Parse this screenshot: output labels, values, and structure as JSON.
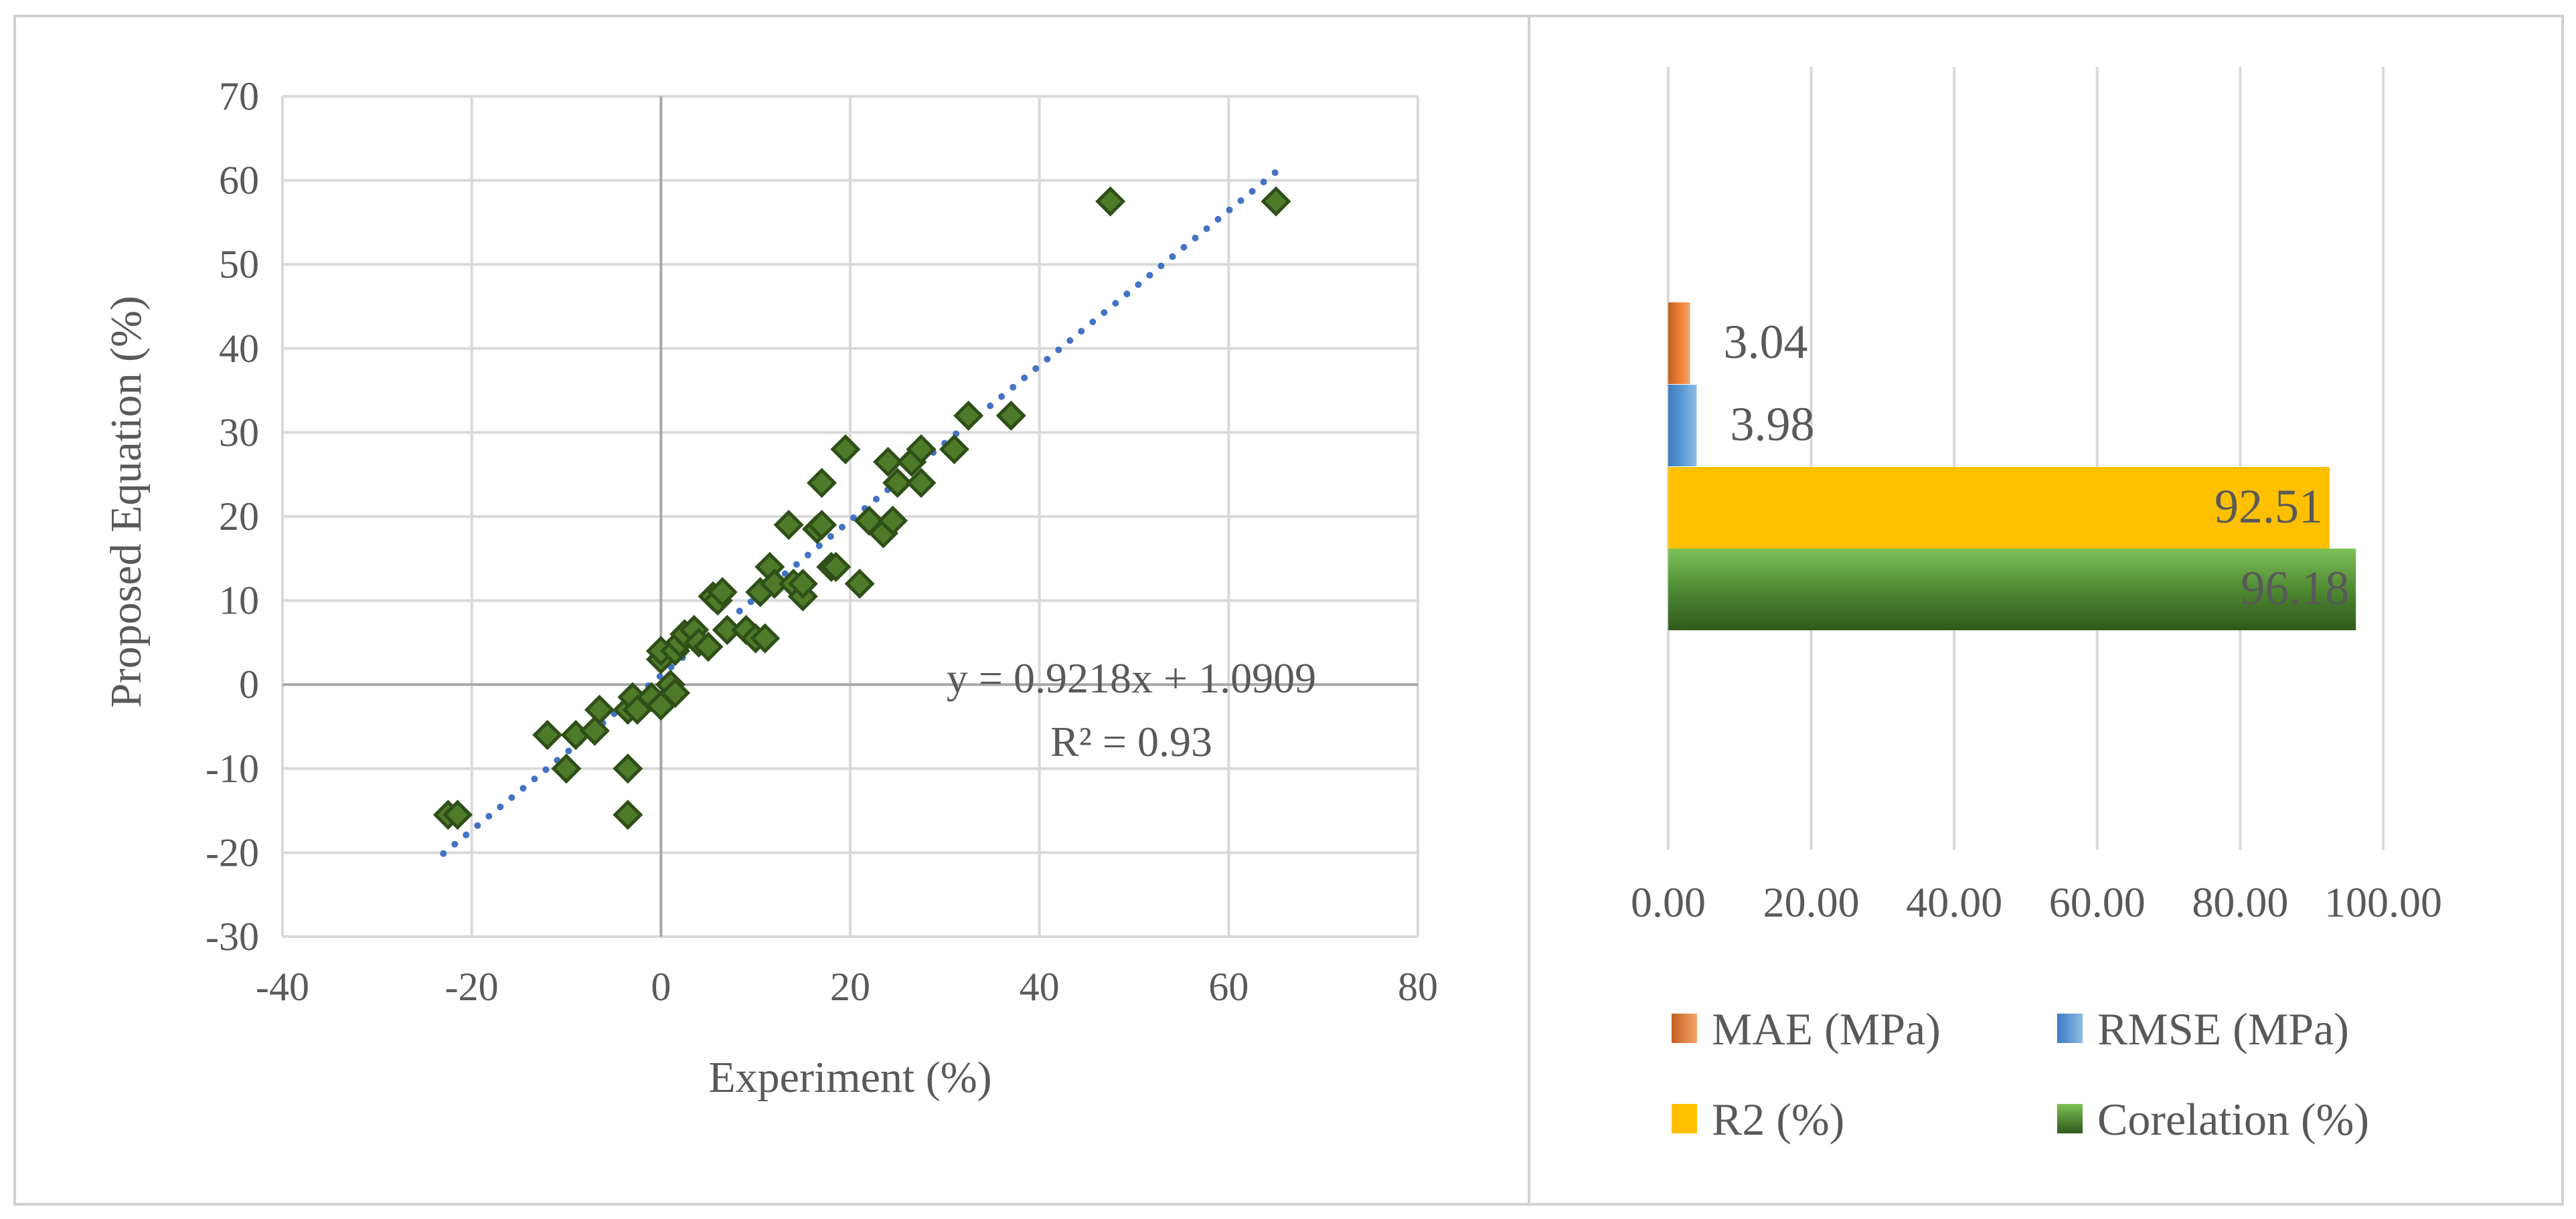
{
  "chart_data": [
    {
      "type": "scatter",
      "xlabel": "Experiment (%)",
      "ylabel": "Proposed Equation (%)",
      "xlim": [
        -40,
        80
      ],
      "ylim": [
        -30,
        70
      ],
      "x_ticks": [
        -40,
        -20,
        0,
        20,
        40,
        60,
        80
      ],
      "y_ticks": [
        -30,
        -20,
        -10,
        0,
        10,
        20,
        30,
        40,
        50,
        60,
        70
      ],
      "grid": true,
      "marker": "diamond",
      "marker_color": "#4E7A2A",
      "trendline": {
        "slope": 0.9218,
        "intercept": 1.0909,
        "x_range": [
          -23,
          65
        ],
        "color": "#4472C4",
        "style": "dotted",
        "equation_label": "y = 0.9218x + 1.0909",
        "r2_label": "R² = 0.93"
      },
      "points": [
        [
          -22.5,
          -15.5
        ],
        [
          -21.5,
          -15.5
        ],
        [
          -12,
          -6
        ],
        [
          -10,
          -10
        ],
        [
          -9,
          -6
        ],
        [
          -7,
          -5.5
        ],
        [
          -6.5,
          -3
        ],
        [
          -3.5,
          -15.5
        ],
        [
          -3.5,
          -10
        ],
        [
          -3.5,
          -3
        ],
        [
          -3,
          -1.5
        ],
        [
          -2.5,
          -3
        ],
        [
          -1,
          -1.5
        ],
        [
          0,
          -2.5
        ],
        [
          0,
          3
        ],
        [
          0,
          4
        ],
        [
          1,
          0
        ],
        [
          1.5,
          -1
        ],
        [
          1.5,
          4
        ],
        [
          2,
          5
        ],
        [
          2.5,
          6
        ],
        [
          3.5,
          6.5
        ],
        [
          4,
          5
        ],
        [
          5,
          4.5
        ],
        [
          5.5,
          10.5
        ],
        [
          6,
          10
        ],
        [
          6.5,
          11
        ],
        [
          7,
          6.5
        ],
        [
          9,
          6.5
        ],
        [
          10,
          5.5
        ],
        [
          10.5,
          11
        ],
        [
          11,
          5.5
        ],
        [
          11.5,
          14
        ],
        [
          12,
          12
        ],
        [
          13.5,
          19
        ],
        [
          14,
          12
        ],
        [
          15,
          10.5
        ],
        [
          15,
          12
        ],
        [
          16.5,
          18.5
        ],
        [
          17,
          19
        ],
        [
          17,
          24
        ],
        [
          18,
          14
        ],
        [
          18.5,
          14
        ],
        [
          19.5,
          28
        ],
        [
          21,
          12
        ],
        [
          22,
          19.5
        ],
        [
          23.5,
          18
        ],
        [
          24,
          26.5
        ],
        [
          24.5,
          19.5
        ],
        [
          25,
          24
        ],
        [
          26.5,
          26.5
        ],
        [
          27.5,
          28
        ],
        [
          27.5,
          24
        ],
        [
          31,
          28
        ],
        [
          32.5,
          32
        ],
        [
          37,
          32
        ],
        [
          47.5,
          57.5
        ],
        [
          65,
          57.5
        ]
      ]
    },
    {
      "type": "bar",
      "orientation": "horizontal",
      "categories": [
        "MAE (MPa)",
        "RMSE (MPa)",
        "R2 (%)",
        "Corelation (%)"
      ],
      "values": [
        3.04,
        3.98,
        92.51,
        96.18
      ],
      "value_labels": [
        "3.04",
        "3.98",
        "92.51",
        "96.18"
      ],
      "colors": [
        "#ED7D31",
        "#5B9BD5",
        "#FFC000",
        "#70AD47"
      ],
      "xlim": [
        0,
        100
      ],
      "x_ticks": [
        "0.00",
        "20.00",
        "40.00",
        "60.00",
        "80.00",
        "100.00"
      ],
      "grid": true,
      "legend_position": "bottom"
    }
  ]
}
